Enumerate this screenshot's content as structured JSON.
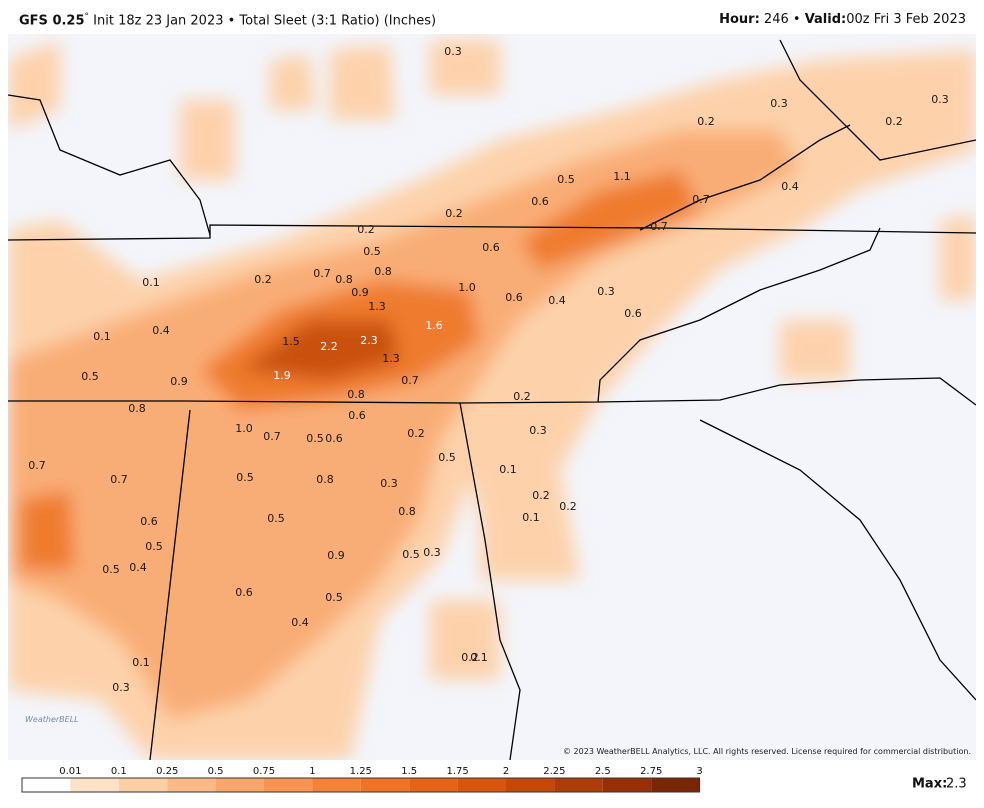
{
  "header": {
    "model": "GFS 0.25",
    "degree": "°",
    "description": "Init 18z 23 Jan 2023 • Total Sleet (3:1 Ratio) (Inches)",
    "hour_label": "Hour:",
    "hour": "246 •",
    "valid_label": "Valid:",
    "valid": "00z Fri 3 Feb 2023"
  },
  "map_labels": [
    "0.3",
    "0.3",
    "0.3",
    "0.2",
    "0.2",
    "0.5",
    "1.1",
    "0.4",
    "0.6",
    "0.7",
    "0.2",
    "0.7",
    "0.2",
    "0.6",
    "0.5",
    "0.7",
    "0.8",
    "0.8",
    "0.2",
    "0.1",
    "1.0",
    "0.9",
    "0.6",
    "0.4",
    "0.3",
    "1.3",
    "0.6",
    "1.6",
    "0.4",
    "0.1",
    "1.5",
    "2.2",
    "2.3",
    "1.3",
    "0.5",
    "1.9",
    "0.9",
    "0.7",
    "0.8",
    "0.2",
    "0.8",
    "0.6",
    "1.0",
    "0.7",
    "0.5",
    "0.6",
    "0.2",
    "0.3",
    "0.5",
    "0.7",
    "0.1",
    "0.5",
    "0.7",
    "0.8",
    "0.3",
    "0.2",
    "0.2",
    "0.1",
    "0.8",
    "0.5",
    "0.6",
    "0.5",
    "0.9",
    "0.5",
    "0.3",
    "0.5",
    "0.4",
    "0.6",
    "0.5",
    "0.4",
    "0.1",
    "0.2",
    "0.1",
    "0.3"
  ],
  "copyright": "© 2023 WeatherBELL Analytics, LLC. All rights reserved. License required for commercial distribution.",
  "logo": "WeatherBELL",
  "colorbar": {
    "ticks": [
      "0.01",
      "0.1",
      "0.25",
      "0.5",
      "0.75",
      "1",
      "1.25",
      "1.5",
      "1.75",
      "2",
      "2.25",
      "2.5",
      "2.75",
      "3"
    ]
  },
  "footer": {
    "max_label": "Max:",
    "max_value": "2.3"
  }
}
